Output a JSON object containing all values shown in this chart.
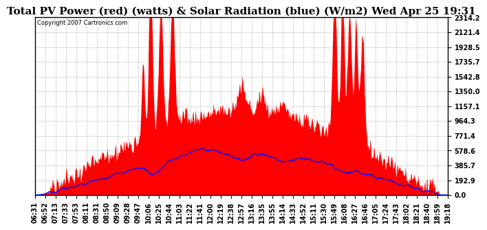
{
  "title": "Total PV Power (red) (watts) & Solar Radiation (blue) (W/m2) Wed Apr 25 19:31",
  "copyright": "Copyright 2007 Cartronics.com",
  "y_ticks": [
    0.0,
    192.9,
    385.7,
    578.6,
    771.4,
    964.3,
    1157.1,
    1350.0,
    1542.8,
    1735.7,
    1928.5,
    2121.4,
    2314.2
  ],
  "ylim": [
    0,
    2314.2
  ],
  "x_labels": [
    "06:31",
    "06:52",
    "07:13",
    "07:33",
    "07:53",
    "08:11",
    "08:31",
    "08:50",
    "09:09",
    "09:28",
    "09:47",
    "10:06",
    "10:25",
    "10:44",
    "11:03",
    "11:22",
    "11:41",
    "12:00",
    "12:19",
    "12:38",
    "12:57",
    "13:16",
    "13:35",
    "13:55",
    "14:14",
    "14:33",
    "14:52",
    "15:11",
    "15:30",
    "15:49",
    "16:08",
    "16:27",
    "16:46",
    "17:05",
    "17:24",
    "17:43",
    "18:02",
    "18:21",
    "18:40",
    "18:59",
    "19:18"
  ],
  "background_color": "#ffffff",
  "grid_color": "#bbbbbb",
  "red_color": "#ff0000",
  "blue_color": "#0000ff",
  "title_fontsize": 11,
  "tick_fontsize": 7,
  "copyright_fontsize": 6
}
